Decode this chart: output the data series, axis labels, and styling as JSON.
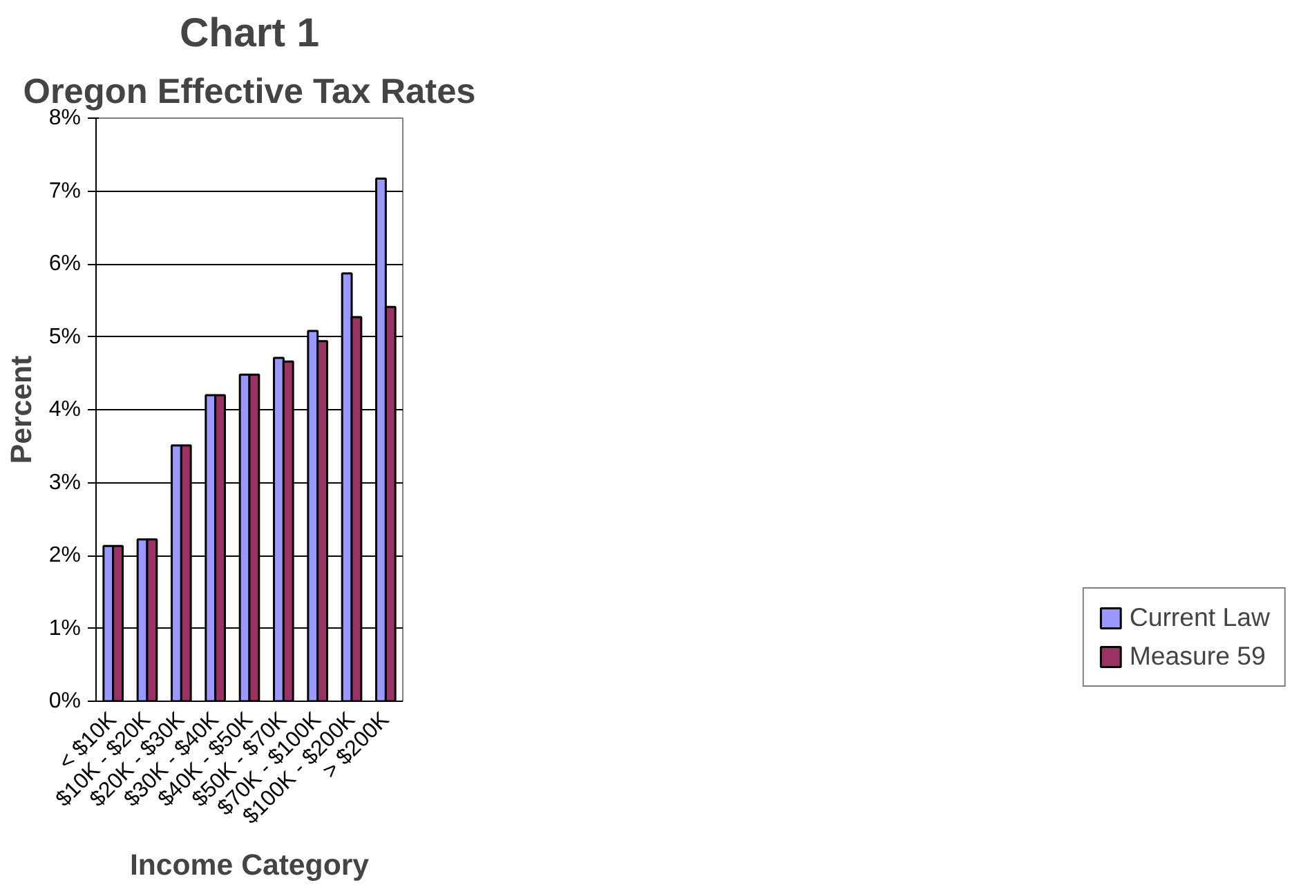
{
  "chart_data": {
    "type": "bar",
    "title": "Chart 1",
    "subtitle": "Oregon Effective Tax Rates",
    "xlabel": "Income Category",
    "ylabel": "Percent",
    "categories": [
      "< $10K",
      "$10K - $20K",
      "$20K - $30K",
      "$30K - $40K",
      "$40K - $50K",
      "$50K - $70K",
      "$70K - $100K",
      "$100K - $200K",
      "> $200K"
    ],
    "series": [
      {
        "name": "Current Law",
        "color": "#9999ff",
        "values": [
          2.13,
          2.22,
          3.51,
          4.2,
          4.48,
          4.71,
          5.08,
          5.87,
          7.17
        ]
      },
      {
        "name": "Measure 59",
        "color": "#993366",
        "values": [
          2.13,
          2.22,
          3.51,
          4.2,
          4.48,
          4.66,
          4.94,
          5.27,
          5.41
        ]
      }
    ],
    "ylim": [
      0,
      8
    ],
    "yticks": [
      {
        "value": 0,
        "label": "0%"
      },
      {
        "value": 1,
        "label": "1%"
      },
      {
        "value": 2,
        "label": "2%"
      },
      {
        "value": 3,
        "label": "3%"
      },
      {
        "value": 4,
        "label": "4%"
      },
      {
        "value": 5,
        "label": "5%"
      },
      {
        "value": 6,
        "label": "6%"
      },
      {
        "value": 7,
        "label": "7%"
      },
      {
        "value": 8,
        "label": "8%"
      }
    ],
    "grid": "y",
    "legend": "bottom right"
  }
}
